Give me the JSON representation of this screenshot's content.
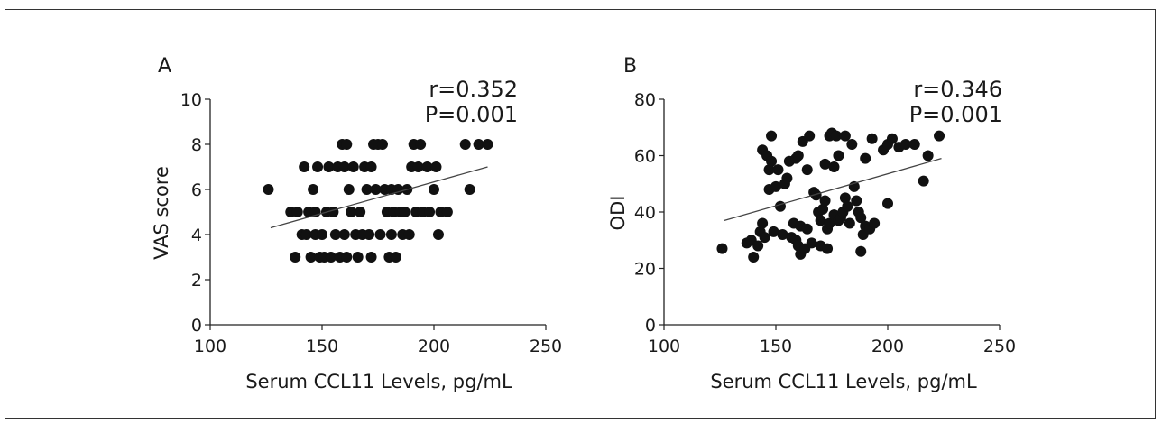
{
  "chart_data": [
    {
      "type": "scatter",
      "panel": "A",
      "xlabel": "Serum CCL11 Levels, pg/mL",
      "ylabel": "VAS score",
      "xlim": [
        100,
        250
      ],
      "ylim": [
        0,
        10
      ],
      "xticks": [
        "100",
        "150",
        "200",
        "250"
      ],
      "yticks": [
        "0",
        "2",
        "4",
        "6",
        "8",
        "10"
      ],
      "stats": [
        "r=0.352",
        "P=0.001"
      ],
      "grid": false,
      "trendline": {
        "x": [
          127,
          224
        ],
        "y": [
          4.3,
          7.0
        ]
      },
      "points": [
        [
          126,
          6
        ],
        [
          136,
          5
        ],
        [
          138,
          3
        ],
        [
          139,
          5
        ],
        [
          141,
          4
        ],
        [
          142,
          7
        ],
        [
          143,
          4
        ],
        [
          144,
          5
        ],
        [
          145,
          3
        ],
        [
          146,
          6
        ],
        [
          147,
          4
        ],
        [
          147,
          5
        ],
        [
          148,
          7
        ],
        [
          149,
          3
        ],
        [
          150,
          4
        ],
        [
          151,
          3
        ],
        [
          152,
          5
        ],
        [
          153,
          7
        ],
        [
          154,
          3
        ],
        [
          155,
          5
        ],
        [
          156,
          4
        ],
        [
          157,
          7
        ],
        [
          158,
          3
        ],
        [
          159,
          8
        ],
        [
          160,
          7
        ],
        [
          160,
          4
        ],
        [
          161,
          8
        ],
        [
          161,
          3
        ],
        [
          162,
          6
        ],
        [
          163,
          5
        ],
        [
          164,
          7
        ],
        [
          165,
          4
        ],
        [
          166,
          3
        ],
        [
          167,
          5
        ],
        [
          168,
          4
        ],
        [
          169,
          7
        ],
        [
          170,
          6
        ],
        [
          171,
          4
        ],
        [
          172,
          3
        ],
        [
          172,
          7
        ],
        [
          173,
          8
        ],
        [
          174,
          6
        ],
        [
          175,
          8
        ],
        [
          176,
          4
        ],
        [
          177,
          8
        ],
        [
          178,
          6
        ],
        [
          179,
          5
        ],
        [
          180,
          3
        ],
        [
          181,
          6
        ],
        [
          181,
          4
        ],
        [
          182,
          5
        ],
        [
          183,
          3
        ],
        [
          184,
          6
        ],
        [
          185,
          5
        ],
        [
          186,
          4
        ],
        [
          187,
          5
        ],
        [
          188,
          6
        ],
        [
          189,
          4
        ],
        [
          190,
          7
        ],
        [
          191,
          8
        ],
        [
          192,
          5
        ],
        [
          193,
          7
        ],
        [
          194,
          8
        ],
        [
          195,
          5
        ],
        [
          197,
          7
        ],
        [
          198,
          5
        ],
        [
          200,
          6
        ],
        [
          201,
          7
        ],
        [
          202,
          4
        ],
        [
          203,
          5
        ],
        [
          206,
          5
        ],
        [
          214,
          8
        ],
        [
          216,
          6
        ],
        [
          220,
          8
        ],
        [
          224,
          8
        ]
      ]
    },
    {
      "type": "scatter",
      "panel": "B",
      "xlabel": "Serum CCL11 Levels, pg/mL",
      "ylabel": "ODI",
      "xlim": [
        100,
        250
      ],
      "ylim": [
        0,
        80
      ],
      "xticks": [
        "100",
        "150",
        "200",
        "250"
      ],
      "yticks": [
        "0",
        "20",
        "40",
        "60",
        "80"
      ],
      "stats": [
        "r=0.346",
        "P=0.001"
      ],
      "grid": false,
      "trendline": {
        "x": [
          127,
          224
        ],
        "y": [
          37,
          59
        ]
      },
      "points": [
        [
          126,
          27
        ],
        [
          137,
          29
        ],
        [
          139,
          30
        ],
        [
          140,
          24
        ],
        [
          142,
          28
        ],
        [
          143,
          33
        ],
        [
          144,
          36
        ],
        [
          144,
          62
        ],
        [
          145,
          31
        ],
        [
          146,
          60
        ],
        [
          147,
          48
        ],
        [
          147,
          55
        ],
        [
          148,
          58
        ],
        [
          148,
          67
        ],
        [
          149,
          33
        ],
        [
          150,
          49
        ],
        [
          151,
          55
        ],
        [
          152,
          42
        ],
        [
          153,
          32
        ],
        [
          154,
          50
        ],
        [
          155,
          52
        ],
        [
          156,
          58
        ],
        [
          157,
          31
        ],
        [
          158,
          36
        ],
        [
          159,
          30
        ],
        [
          159,
          59
        ],
        [
          160,
          28
        ],
        [
          160,
          60
        ],
        [
          161,
          25
        ],
        [
          161,
          35
        ],
        [
          162,
          65
        ],
        [
          163,
          27
        ],
        [
          164,
          34
        ],
        [
          164,
          55
        ],
        [
          165,
          67
        ],
        [
          166,
          29
        ],
        [
          167,
          47
        ],
        [
          168,
          46
        ],
        [
          169,
          40
        ],
        [
          170,
          28
        ],
        [
          170,
          37
        ],
        [
          171,
          41
        ],
        [
          172,
          57
        ],
        [
          172,
          44
        ],
        [
          173,
          27
        ],
        [
          173,
          34
        ],
        [
          174,
          36
        ],
        [
          174,
          67
        ],
        [
          175,
          68
        ],
        [
          176,
          39
        ],
        [
          176,
          56
        ],
        [
          177,
          67
        ],
        [
          178,
          60
        ],
        [
          178,
          37
        ],
        [
          179,
          38
        ],
        [
          180,
          40
        ],
        [
          181,
          67
        ],
        [
          181,
          45
        ],
        [
          182,
          42
        ],
        [
          183,
          36
        ],
        [
          184,
          64
        ],
        [
          185,
          49
        ],
        [
          186,
          44
        ],
        [
          187,
          40
        ],
        [
          188,
          26
        ],
        [
          188,
          38
        ],
        [
          189,
          32
        ],
        [
          190,
          35
        ],
        [
          190,
          59
        ],
        [
          192,
          34
        ],
        [
          193,
          66
        ],
        [
          194,
          36
        ],
        [
          198,
          62
        ],
        [
          200,
          64
        ],
        [
          200,
          43
        ],
        [
          202,
          66
        ],
        [
          205,
          63
        ],
        [
          208,
          64
        ],
        [
          212,
          64
        ],
        [
          216,
          51
        ],
        [
          218,
          60
        ],
        [
          223,
          67
        ]
      ]
    }
  ]
}
